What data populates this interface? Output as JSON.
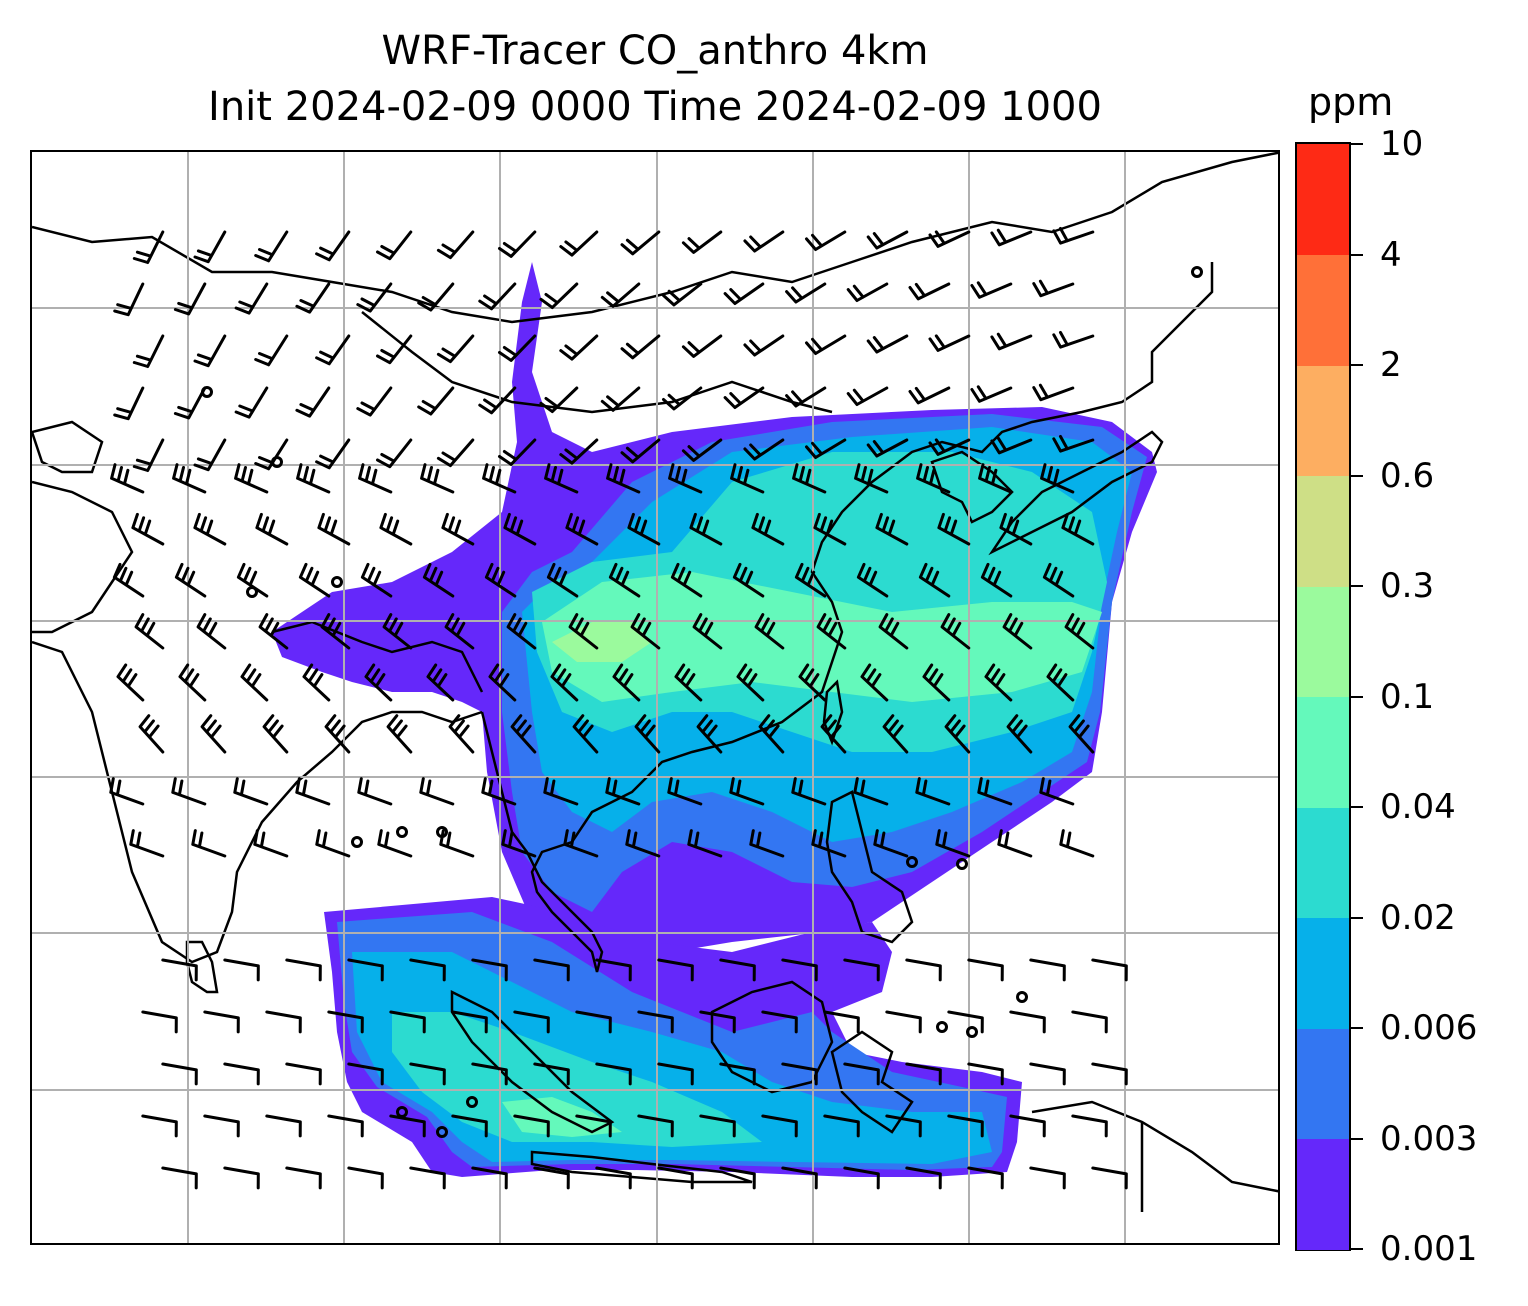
{
  "title": {
    "line1": "WRF-Tracer CO_anthro 4km",
    "line2": "Init 2024-02-09 0000 Time 2024-02-09 1000"
  },
  "colorbar": {
    "unit": "ppm",
    "levels": [
      "0.001",
      "0.003",
      "0.006",
      "0.02",
      "0.04",
      "0.1",
      "0.3",
      "0.6",
      "2",
      "4",
      "10"
    ],
    "colors": [
      "#6528fa",
      "#3376f2",
      "#06b0ea",
      "#2cdbd0",
      "#64f9bb",
      "#9bfa9d",
      "#cedf86",
      "#fdae61",
      "#ff7038",
      "#fe2a15"
    ]
  },
  "map": {
    "gridlines": true,
    "coastline_color": "#000000",
    "wind_barbs": true,
    "fill_palette_order": [
      "0.001-0.003",
      "0.003-0.006",
      "0.006-0.02",
      "0.02-0.04",
      "0.04-0.1",
      "0.1-0.3"
    ]
  }
}
